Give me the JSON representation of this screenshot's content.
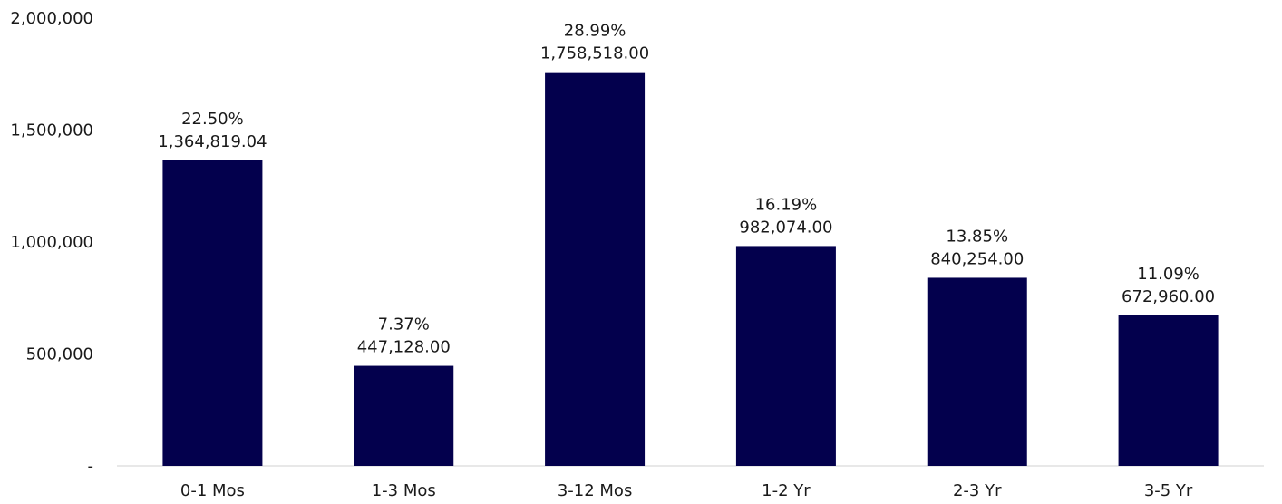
{
  "chart_data": {
    "type": "bar",
    "title": "",
    "xlabel": "",
    "ylabel": "",
    "ylim": [
      0,
      2000000
    ],
    "y_ticks": [
      {
        "value": 0,
        "label": "-"
      },
      {
        "value": 500000,
        "label": "500,000"
      },
      {
        "value": 1000000,
        "label": "1,000,000"
      },
      {
        "value": 1500000,
        "label": "1,500,000"
      },
      {
        "value": 2000000,
        "label": "2,000,000"
      }
    ],
    "grid": false,
    "legend": "none",
    "bar_color": "#03004d",
    "categories": [
      "0-1 Mos",
      "1-3 Mos",
      "3-12 Mos",
      "1-2 Yr",
      "2-3 Yr",
      "3-5 Yr"
    ],
    "values": [
      1364819.04,
      447128.0,
      1758518.0,
      982074.0,
      840254.0,
      672960.0
    ],
    "percent_labels": [
      "22.50%",
      "7.37%",
      "28.99%",
      "16.19%",
      "13.85%",
      "11.09%"
    ],
    "value_labels": [
      "1,364,819.04",
      "447,128.00",
      "1,758,518.00",
      "982,074.00",
      "840,254.00",
      "672,960.00"
    ]
  }
}
